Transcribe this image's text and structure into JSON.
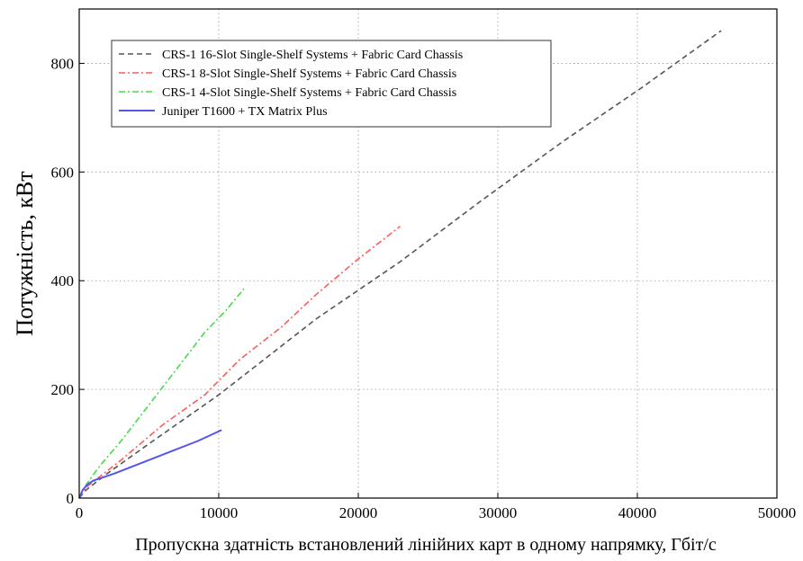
{
  "chart_data": {
    "type": "line",
    "title": "",
    "xlabel": "Пропускна здатність встановлений лінійних карт в одному напрямку, Гбіт/с",
    "ylabel": "Потужність, кВт",
    "xlim": [
      0,
      50000
    ],
    "ylim": [
      0,
      900
    ],
    "x_ticks": [
      0,
      10000,
      20000,
      30000,
      40000,
      50000
    ],
    "y_ticks": [
      0,
      200,
      400,
      600,
      800
    ],
    "grid": true,
    "legend_position": "top-left",
    "series": [
      {
        "name": "CRS-1 16-Slot Single-Shelf Systems + Fabric Card Chassis",
        "color": "#555555",
        "dash": "dashed",
        "x": [
          0,
          500,
          2000,
          5000,
          10000,
          17000,
          23000,
          28700,
          34600,
          40300,
          46000
        ],
        "y": [
          0,
          15,
          45,
          100,
          190,
          330,
          435,
          545,
          655,
          755,
          860
        ]
      },
      {
        "name": "CRS-1 8-Slot Single-Shelf Systems + Fabric Card Chassis",
        "color": "#ff5a5a",
        "dash": "dashdot",
        "x": [
          0,
          500,
          3000,
          6000,
          9000,
          11500,
          14500,
          17000,
          20000,
          23000
        ],
        "y": [
          0,
          20,
          70,
          135,
          190,
          255,
          315,
          375,
          440,
          500
        ]
      },
      {
        "name": "CRS-1 4-Slot Single-Shelf Systems + Fabric Card Chassis",
        "color": "#44dd44",
        "dash": "dashdot",
        "x": [
          0,
          500,
          1500,
          3000,
          4500,
          6000,
          7500,
          9000,
          10500,
          11800
        ],
        "y": [
          0,
          25,
          60,
          105,
          155,
          205,
          255,
          305,
          345,
          385
        ]
      },
      {
        "name": "Juniper T1600 + TX Matrix Plus",
        "color": "#5555ee",
        "dash": "solid",
        "x": [
          0,
          250,
          600,
          1000,
          2500,
          4500,
          6500,
          8500,
          10200
        ],
        "y": [
          0,
          15,
          25,
          32,
          45,
          65,
          85,
          105,
          125
        ]
      }
    ]
  }
}
